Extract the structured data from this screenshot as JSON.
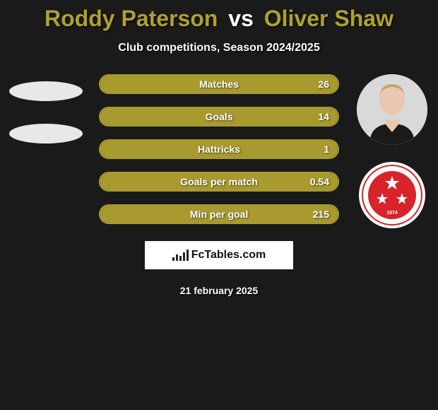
{
  "title": {
    "player1": "Roddy Paterson",
    "vs": "vs",
    "player2": "Oliver Shaw",
    "player1_color": "#b0a02f",
    "player2_color": "#b0a02f"
  },
  "subtitle": "Club competitions, Season 2024/2025",
  "accent_color": "#a99a2f",
  "bars": [
    {
      "label": "Matches",
      "value": "26",
      "fill_pct": 100
    },
    {
      "label": "Goals",
      "value": "14",
      "fill_pct": 100
    },
    {
      "label": "Hattricks",
      "value": "1",
      "fill_pct": 100
    },
    {
      "label": "Goals per match",
      "value": "0.54",
      "fill_pct": 100
    },
    {
      "label": "Min per goal",
      "value": "215",
      "fill_pct": 100
    }
  ],
  "left": {
    "has_player_photo": false,
    "has_club_badge": false
  },
  "right": {
    "has_player_photo": true,
    "player_bg": "#dddddd",
    "has_club_badge": true,
    "badge_bg": "#ffffff",
    "badge_inner": "#d8232a",
    "badge_year": "1874"
  },
  "site_logo_text": "FcTables.com",
  "date": "21 february 2025"
}
